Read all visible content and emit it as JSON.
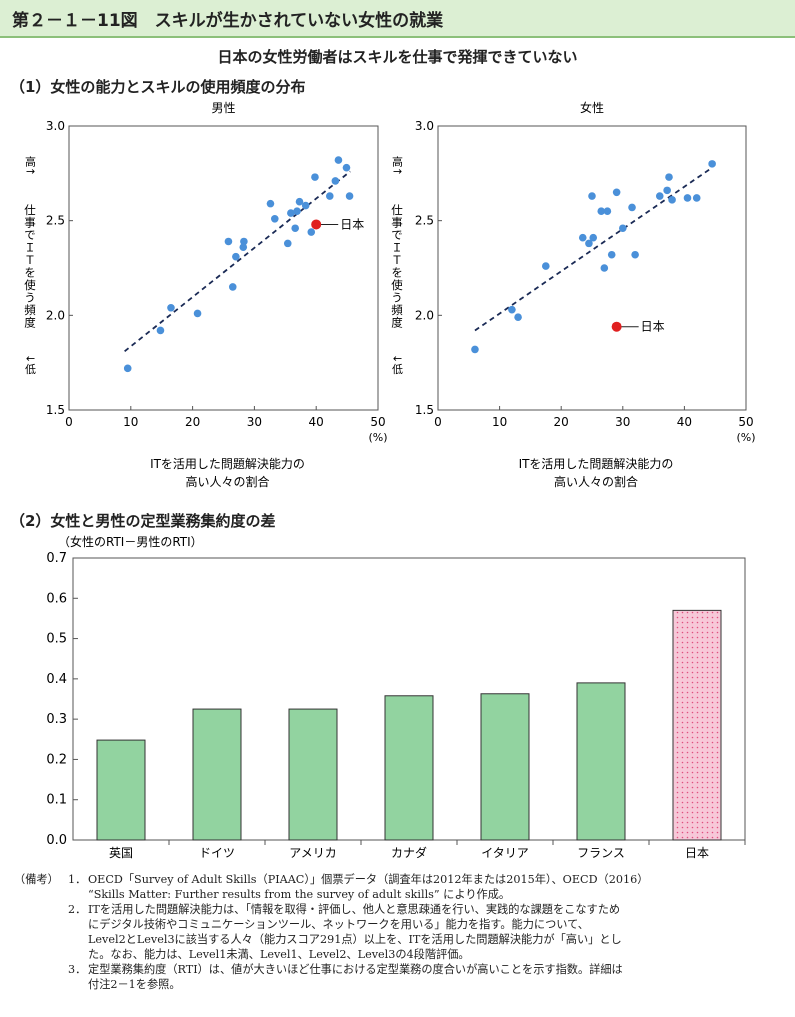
{
  "figure_title": "第２－１－11図　スキルが生かされていない女性の就業",
  "subtitle": "日本の女性労働者はスキルを仕事で発揮できていない",
  "section1_title": "（1）女性の能力とスキルの使用頻度の分布",
  "section2_title": "（2）女性と男性の定型業務集約度の差",
  "chart_data": [
    {
      "type": "scatter",
      "title": "男性",
      "ylabel": [
        "高↑",
        "仕事でＩＴを使う頻度",
        "↓低"
      ],
      "xlabel": [
        "ITを活用した問題解決能力の",
        "高い人々の割合"
      ],
      "x_unit": "(%)",
      "xlim": [
        0,
        50
      ],
      "ylim": [
        1.5,
        3.0
      ],
      "x_ticks": [
        "0",
        "10",
        "20",
        "30",
        "40",
        "50"
      ],
      "y_ticks": [
        "1.5",
        "2.0",
        "2.5",
        "3.0"
      ],
      "points": [
        [
          9.5,
          1.72
        ],
        [
          14.8,
          1.92
        ],
        [
          16.5,
          2.04
        ],
        [
          20.8,
          2.01
        ],
        [
          25.8,
          2.39
        ],
        [
          26.5,
          2.15
        ],
        [
          27.0,
          2.31
        ],
        [
          28.2,
          2.36
        ],
        [
          28.3,
          2.39
        ],
        [
          32.6,
          2.59
        ],
        [
          33.3,
          2.51
        ],
        [
          35.4,
          2.38
        ],
        [
          35.9,
          2.54
        ],
        [
          36.6,
          2.46
        ],
        [
          36.9,
          2.55
        ],
        [
          37.3,
          2.6
        ],
        [
          38.3,
          2.58
        ],
        [
          39.2,
          2.44
        ],
        [
          39.8,
          2.73
        ],
        [
          42.2,
          2.63
        ],
        [
          43.1,
          2.71
        ],
        [
          43.6,
          2.82
        ],
        [
          44.9,
          2.78
        ],
        [
          45.4,
          2.63
        ]
      ],
      "highlight": {
        "label": "日本",
        "x": 40.0,
        "y": 2.48,
        "color": "#e02020"
      },
      "trend": [
        [
          9.0,
          1.81
        ],
        [
          45.5,
          2.76
        ]
      ],
      "point_color": "#4a90d9"
    },
    {
      "type": "scatter",
      "title": "女性",
      "ylabel": [
        "高↑",
        "仕事でＩＴを使う頻度",
        "↓低"
      ],
      "xlabel": [
        "ITを活用した問題解決能力の",
        "高い人々の割合"
      ],
      "x_unit": "(%)",
      "xlim": [
        0,
        50
      ],
      "ylim": [
        1.5,
        3.0
      ],
      "x_ticks": [
        "0",
        "10",
        "20",
        "30",
        "40",
        "50"
      ],
      "y_ticks": [
        "1.5",
        "2.0",
        "2.5",
        "3.0"
      ],
      "points": [
        [
          6.0,
          1.82
        ],
        [
          12.0,
          2.03
        ],
        [
          13.0,
          1.99
        ],
        [
          17.5,
          2.26
        ],
        [
          23.5,
          2.41
        ],
        [
          24.5,
          2.38
        ],
        [
          25.0,
          2.63
        ],
        [
          25.2,
          2.41
        ],
        [
          26.5,
          2.55
        ],
        [
          27.0,
          2.25
        ],
        [
          27.5,
          2.55
        ],
        [
          28.2,
          2.32
        ],
        [
          29.0,
          2.65
        ],
        [
          30.0,
          2.46
        ],
        [
          31.5,
          2.57
        ],
        [
          32.0,
          2.32
        ],
        [
          36.0,
          2.63
        ],
        [
          37.2,
          2.66
        ],
        [
          37.5,
          2.73
        ],
        [
          38.0,
          2.61
        ],
        [
          40.5,
          2.62
        ],
        [
          42.0,
          2.62
        ],
        [
          44.5,
          2.8
        ]
      ],
      "highlight": {
        "label": "日本",
        "x": 29.0,
        "y": 1.94,
        "color": "#e02020"
      },
      "trend": [
        [
          6.0,
          1.92
        ],
        [
          44.5,
          2.78
        ]
      ],
      "point_color": "#4a90d9"
    },
    {
      "type": "bar",
      "ylabel": "（女性のRTI－男性のRTI）",
      "categories": [
        "英国",
        "ドイツ",
        "アメリカ",
        "カナダ",
        "イタリア",
        "フランス",
        "日本"
      ],
      "values": [
        0.248,
        0.325,
        0.325,
        0.358,
        0.363,
        0.39,
        0.57
      ],
      "ylim": [
        0.0,
        0.7
      ],
      "y_ticks": [
        "0.0",
        "0.1",
        "0.2",
        "0.3",
        "0.4",
        "0.5",
        "0.6",
        "0.7"
      ],
      "bar_color": "#92d3a0",
      "highlight_color": "#f7c8d8",
      "highlight_dot_color": "#e05080",
      "highlight_index": 6
    }
  ],
  "notes": {
    "lead": "（備考）",
    "items": [
      {
        "num": "1．",
        "lines": [
          "OECD「Survey of Adult Skills（PIAAC）」個票データ（調査年は2012年または2015年）、OECD（2016）",
          "“Skills Matter: Further results from the survey of adult skills” により作成。"
        ]
      },
      {
        "num": "2．",
        "lines": [
          "ITを活用した問題解決能力は、「情報を取得・評価し、他人と意思疎通を行い、実践的な課題をこなすため",
          "にデジタル技術やコミュニケーションツール、ネットワークを用いる」能力を指す。能力について、",
          "Level2とLevel3に該当する人々（能力スコア291点）以上を、ITを活用した問題解決能力が「高い」とし",
          "た。なお、能力は、Level1未満、Level1、Level2、Level3の4段階評価。"
        ]
      },
      {
        "num": "3．",
        "lines": [
          "定型業務集約度（RTI）は、値が大きいほど仕事における定型業務の度合いが高いことを示す指数。詳細は",
          "付注2－1を参照。"
        ]
      }
    ]
  }
}
